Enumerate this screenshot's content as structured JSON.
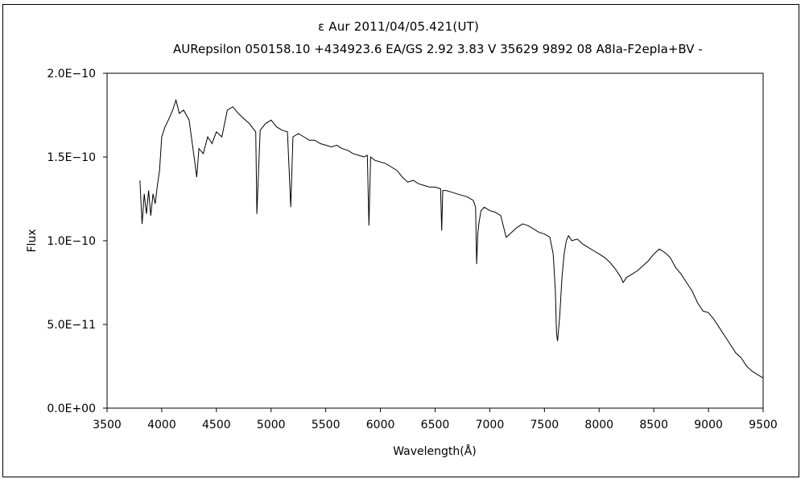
{
  "chart_data": {
    "type": "line",
    "title": "ε Aur   2011/04/05.421(UT)",
    "subtitle": "AURepsilon 050158.10 +434923.6 EA/GS 2.92 3.83 V 35629 9892 08 A8Ia-F2epIa+BV -",
    "xlabel": "Wavelength(Å)",
    "ylabel": "Flux",
    "xlim": [
      3500,
      9500
    ],
    "ylim": [
      0,
      2e-10
    ],
    "x_ticks": [
      3500,
      4000,
      4500,
      5000,
      5500,
      6000,
      6500,
      7000,
      7500,
      8000,
      8500,
      9000,
      9500
    ],
    "x_tick_labels": [
      "3500",
      "4000",
      "4500",
      "5000",
      "5500",
      "6000",
      "6500",
      "7000",
      "7500",
      "8000",
      "8500",
      "9000",
      "9500"
    ],
    "y_ticks": [
      0,
      5e-11,
      1e-10,
      1.5e-10,
      2e-10
    ],
    "y_tick_labels": [
      "0.0E+00",
      "5.0E−11",
      "1.0E−10",
      "1.5E−10",
      "2.0E−10"
    ],
    "grid": false,
    "legend": "none",
    "line_color": "#000000",
    "series": [
      {
        "x": [
          3800,
          3820,
          3840,
          3860,
          3880,
          3900,
          3920,
          3940,
          3960,
          3980,
          4000,
          4030,
          4060,
          4100,
          4130,
          4160,
          4200,
          4250,
          4300,
          4320,
          4340,
          4380,
          4420,
          4460,
          4500,
          4550,
          4600,
          4650,
          4700,
          4750,
          4800,
          4860,
          4870,
          4900,
          4950,
          5000,
          5050,
          5100,
          5150,
          5180,
          5200,
          5250,
          5300,
          5350,
          5400,
          5450,
          5500,
          5550,
          5600,
          5650,
          5700,
          5750,
          5800,
          5850,
          5880,
          5895,
          5910,
          5950,
          6000,
          6050,
          6100,
          6150,
          6200,
          6250,
          6300,
          6350,
          6400,
          6450,
          6500,
          6550,
          6560,
          6570,
          6600,
          6650,
          6700,
          6750,
          6800,
          6850,
          6870,
          6880,
          6890,
          6900,
          6920,
          6950,
          7000,
          7050,
          7100,
          7150,
          7200,
          7250,
          7300,
          7350,
          7400,
          7450,
          7500,
          7550,
          7580,
          7600,
          7610,
          7620,
          7640,
          7660,
          7680,
          7700,
          7720,
          7750,
          7800,
          7850,
          7900,
          7950,
          8000,
          8050,
          8100,
          8150,
          8200,
          8220,
          8250,
          8300,
          8350,
          8400,
          8450,
          8500,
          8550,
          8600,
          8650,
          8700,
          8750,
          8800,
          8850,
          8900,
          8950,
          9000,
          9050,
          9100,
          9150,
          9200,
          9250,
          9300,
          9350,
          9400,
          9450,
          9500
        ],
        "y": [
          1.36e-10,
          1.1e-10,
          1.28e-10,
          1.16e-10,
          1.3e-10,
          1.15e-10,
          1.28e-10,
          1.22e-10,
          1.33e-10,
          1.42e-10,
          1.62e-10,
          1.68e-10,
          1.72e-10,
          1.78e-10,
          1.84e-10,
          1.76e-10,
          1.78e-10,
          1.72e-10,
          1.48e-10,
          1.38e-10,
          1.55e-10,
          1.52e-10,
          1.62e-10,
          1.58e-10,
          1.65e-10,
          1.62e-10,
          1.78e-10,
          1.8e-10,
          1.76e-10,
          1.73e-10,
          1.7e-10,
          1.65e-10,
          1.16e-10,
          1.66e-10,
          1.7e-10,
          1.72e-10,
          1.68e-10,
          1.66e-10,
          1.65e-10,
          1.2e-10,
          1.62e-10,
          1.64e-10,
          1.62e-10,
          1.6e-10,
          1.6e-10,
          1.58e-10,
          1.57e-10,
          1.56e-10,
          1.57e-10,
          1.55e-10,
          1.54e-10,
          1.52e-10,
          1.51e-10,
          1.5e-10,
          1.51e-10,
          1.09e-10,
          1.5e-10,
          1.48e-10,
          1.47e-10,
          1.46e-10,
          1.44e-10,
          1.42e-10,
          1.38e-10,
          1.35e-10,
          1.36e-10,
          1.34e-10,
          1.33e-10,
          1.32e-10,
          1.32e-10,
          1.31e-10,
          1.06e-10,
          1.3e-10,
          1.3e-10,
          1.29e-10,
          1.28e-10,
          1.27e-10,
          1.26e-10,
          1.24e-10,
          1.2e-10,
          8.6e-11,
          1.04e-10,
          1.1e-10,
          1.18e-10,
          1.2e-10,
          1.18e-10,
          1.17e-10,
          1.15e-10,
          1.02e-10,
          1.05e-10,
          1.08e-10,
          1.1e-10,
          1.09e-10,
          1.07e-10,
          1.05e-10,
          1.04e-10,
          1.02e-10,
          9.2e-11,
          7e-11,
          4.5e-11,
          4e-11,
          5.5e-11,
          7.8e-11,
          9.2e-11,
          1e-10,
          1.03e-10,
          1e-10,
          1.01e-10,
          9.8e-11,
          9.6e-11,
          9.4e-11,
          9.2e-11,
          9e-11,
          8.7e-11,
          8.3e-11,
          7.8e-11,
          7.5e-11,
          7.8e-11,
          8e-11,
          8.2e-11,
          8.5e-11,
          8.8e-11,
          9.2e-11,
          9.5e-11,
          9.3e-11,
          9e-11,
          8.4e-11,
          8e-11,
          7.5e-11,
          7e-11,
          6.3e-11,
          5.8e-11,
          5.7e-11,
          5.3e-11,
          4.8e-11,
          4.3e-11,
          3.8e-11,
          3.3e-11,
          3e-11,
          2.5e-11,
          2.2e-11,
          2e-11,
          1.8e-11
        ]
      }
    ]
  }
}
